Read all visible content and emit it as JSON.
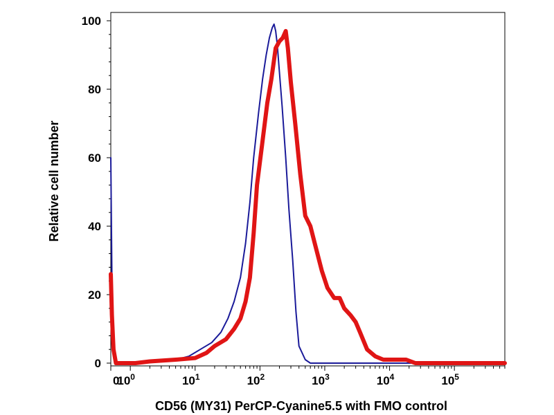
{
  "chart_data": {
    "type": "line",
    "title": "",
    "xlabel": "CD56 (MY31) PerCP-Cyanine5.5 with FMO control",
    "ylabel": "Relative cell number",
    "x_scale": "log",
    "xlim": [
      0.5,
      600000
    ],
    "ylim": [
      0,
      100
    ],
    "x_ticks": [
      {
        "base": "10",
        "exp": "0",
        "value": 1
      },
      {
        "base": "10",
        "exp": "1",
        "value": 10
      },
      {
        "base": "10",
        "exp": "2",
        "value": 100
      },
      {
        "base": "10",
        "exp": "3",
        "value": 1000
      },
      {
        "base": "10",
        "exp": "4",
        "value": 10000
      },
      {
        "base": "10",
        "exp": "5",
        "value": 100000
      }
    ],
    "extra_x_tick": {
      "label": "0",
      "value": 0.5
    },
    "y_ticks": [
      "0",
      "20",
      "40",
      "60",
      "80",
      "100"
    ],
    "y_tick_values": [
      0,
      20,
      40,
      60,
      80,
      100
    ],
    "legend": "none",
    "grid": false,
    "series": [
      {
        "color": "#1a1a99",
        "points": [
          [
            0.5,
            60
          ],
          [
            0.52,
            25
          ],
          [
            0.55,
            2
          ],
          [
            0.6,
            0
          ],
          [
            1.2,
            0
          ],
          [
            2,
            0.5
          ],
          [
            5,
            1
          ],
          [
            8,
            2
          ],
          [
            12,
            4
          ],
          [
            18,
            6
          ],
          [
            25,
            9
          ],
          [
            32,
            13
          ],
          [
            40,
            18
          ],
          [
            50,
            25
          ],
          [
            60,
            35
          ],
          [
            70,
            47
          ],
          [
            80,
            60
          ],
          [
            95,
            73
          ],
          [
            110,
            83
          ],
          [
            125,
            90
          ],
          [
            140,
            95
          ],
          [
            155,
            98
          ],
          [
            165,
            99
          ],
          [
            175,
            97
          ],
          [
            185,
            93
          ],
          [
            200,
            85
          ],
          [
            220,
            75
          ],
          [
            250,
            60
          ],
          [
            280,
            45
          ],
          [
            320,
            30
          ],
          [
            360,
            15
          ],
          [
            400,
            5
          ],
          [
            500,
            1
          ],
          [
            600,
            0
          ],
          [
            800,
            0
          ],
          [
            600000,
            0
          ]
        ]
      },
      {
        "color": "#e01515",
        "points": [
          [
            0.5,
            26
          ],
          [
            0.52,
            14
          ],
          [
            0.55,
            4
          ],
          [
            0.6,
            0
          ],
          [
            1.2,
            0
          ],
          [
            2,
            0.5
          ],
          [
            5,
            1
          ],
          [
            10,
            1.5
          ],
          [
            15,
            3
          ],
          [
            20,
            5
          ],
          [
            30,
            7
          ],
          [
            40,
            10
          ],
          [
            50,
            13
          ],
          [
            60,
            18
          ],
          [
            70,
            25
          ],
          [
            80,
            38
          ],
          [
            90,
            52
          ],
          [
            110,
            65
          ],
          [
            130,
            76
          ],
          [
            150,
            83
          ],
          [
            175,
            92
          ],
          [
            200,
            94
          ],
          [
            225,
            95
          ],
          [
            250,
            97
          ],
          [
            270,
            92
          ],
          [
            300,
            82
          ],
          [
            350,
            70
          ],
          [
            420,
            55
          ],
          [
            500,
            43
          ],
          [
            600,
            40
          ],
          [
            700,
            35
          ],
          [
            900,
            27
          ],
          [
            1100,
            22
          ],
          [
            1400,
            19
          ],
          [
            1700,
            19
          ],
          [
            2000,
            16
          ],
          [
            2500,
            14
          ],
          [
            3000,
            12
          ],
          [
            3500,
            9
          ],
          [
            4500,
            4
          ],
          [
            6000,
            2
          ],
          [
            8000,
            1
          ],
          [
            12000,
            1
          ],
          [
            18000,
            1
          ],
          [
            25000,
            0
          ],
          [
            600000,
            0
          ]
        ]
      }
    ]
  }
}
